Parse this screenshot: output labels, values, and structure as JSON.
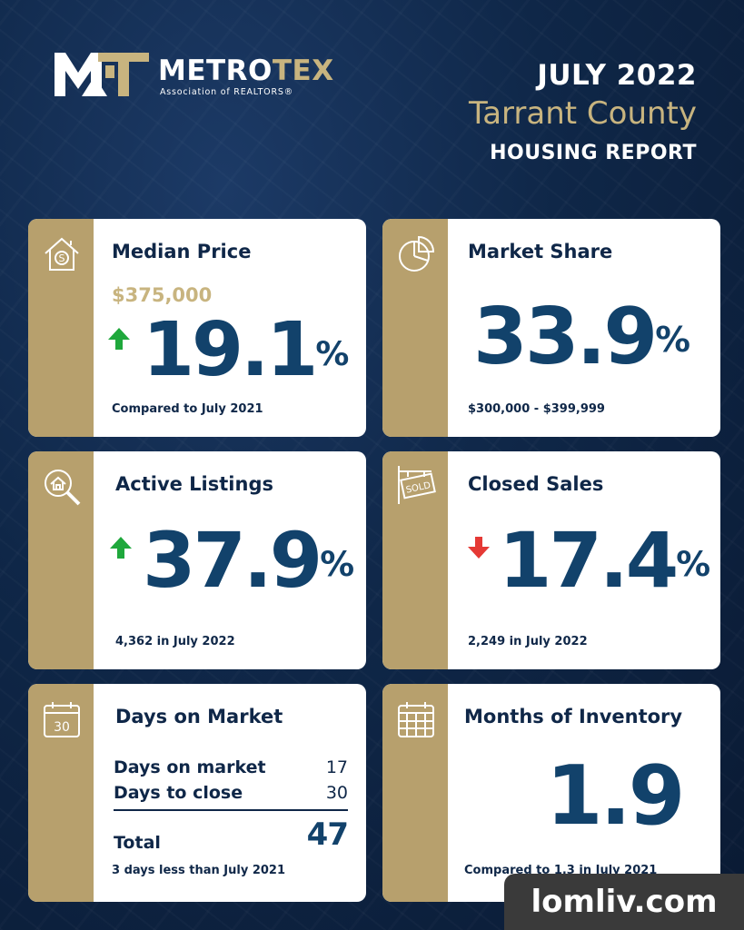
{
  "brand": {
    "word_main": "METRO",
    "word_accent": "TEX",
    "subtitle": "Association of REALTORS®",
    "accent_color": "#c8b47f"
  },
  "header": {
    "date": "JULY 2022",
    "county": "Tarrant County",
    "report": "HOUSING REPORT"
  },
  "cards": {
    "median_price": {
      "title": "Median Price",
      "icon": "house-dollar-icon",
      "price": "$375,000",
      "value": "19.1",
      "unit": "%",
      "direction": "up",
      "footnote": "Compared to July 2021"
    },
    "market_share": {
      "title": "Market Share",
      "icon": "pie-chart-icon",
      "value": "33.9",
      "unit": "%",
      "footnote": "$300,000 - $399,999"
    },
    "active_listings": {
      "title": "Active Listings",
      "icon": "house-search-icon",
      "value": "37.9",
      "unit": "%",
      "direction": "up",
      "footnote": "4,362 in July 2022"
    },
    "closed_sales": {
      "title": "Closed Sales",
      "icon": "sold-sign-icon",
      "value": "17.4",
      "unit": "%",
      "direction": "down",
      "footnote": "2,249 in July 2022"
    },
    "days_on_market": {
      "title": "Days on Market",
      "icon": "calendar-30-icon",
      "icon_text": "30",
      "rows": [
        {
          "label": "Days on market",
          "value": "17"
        },
        {
          "label": "Days to close",
          "value": "30"
        }
      ],
      "total_label": "Total",
      "total_value": "47",
      "footnote": "3 days less than July 2021"
    },
    "months_inventory": {
      "title": "Months of Inventory",
      "icon": "calendar-grid-icon",
      "value": "1.9",
      "footnote": "Compared to 1.3 in July 2021"
    }
  },
  "colors": {
    "navy": "#0f2748",
    "value_blue": "#12426b",
    "gold": "#b7a06d",
    "up_green": "#1fa83c",
    "down_red": "#e53935"
  },
  "watermark": "lomliv.com"
}
